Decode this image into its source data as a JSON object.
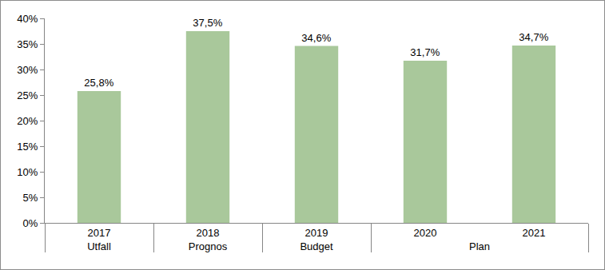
{
  "chart_data": {
    "type": "bar",
    "categories": [
      "2017",
      "2018",
      "2019",
      "2020",
      "2021"
    ],
    "category_groups": [
      "Utfall",
      "Prognos",
      "Budget",
      "Plan",
      "Plan"
    ],
    "values": [
      25.8,
      37.5,
      34.6,
      31.7,
      34.7
    ],
    "value_labels": [
      "25,8%",
      "37,5%",
      "34,6%",
      "31,7%",
      "34,7%"
    ],
    "color": "#a9c89b",
    "ylim": [
      0,
      40
    ],
    "yticks": [
      {
        "value": 0,
        "label": "0%"
      },
      {
        "value": 5,
        "label": "5%"
      },
      {
        "value": 10,
        "label": "10%"
      },
      {
        "value": 15,
        "label": "15%"
      },
      {
        "value": 20,
        "label": "20%"
      },
      {
        "value": 25,
        "label": "25%"
      },
      {
        "value": 30,
        "label": "30%"
      },
      {
        "value": 35,
        "label": "35%"
      },
      {
        "value": 40,
        "label": "40%"
      }
    ],
    "grid": false,
    "data_labels": true
  }
}
